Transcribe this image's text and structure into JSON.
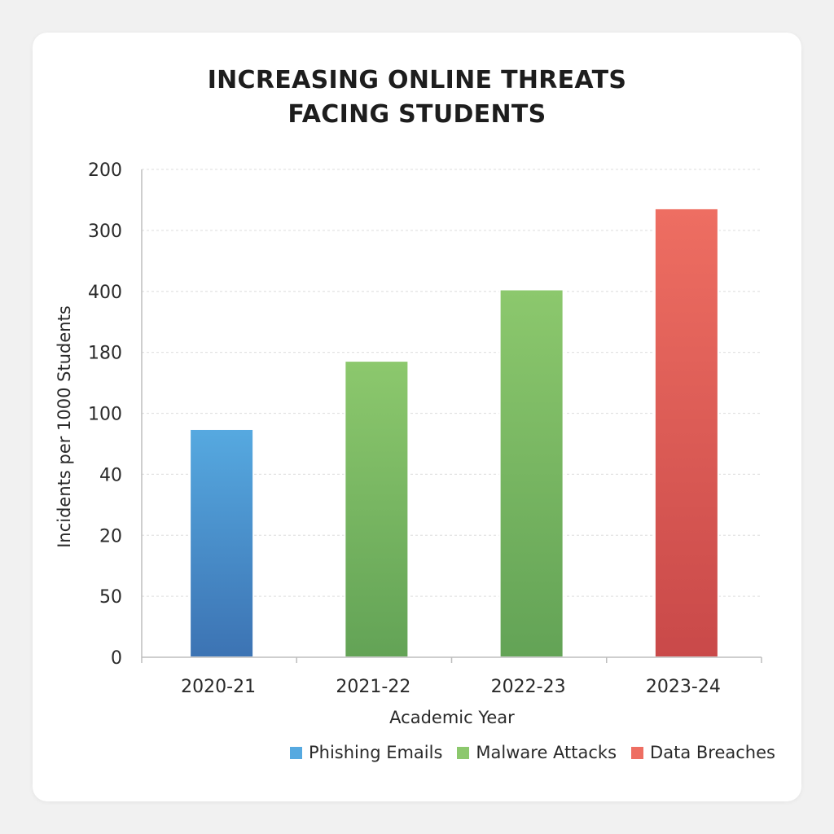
{
  "chart_data": {
    "type": "bar",
    "title_lines": [
      "INCREASING ONLINE THREATS",
      "FACING STUDENTS"
    ],
    "xlabel": "Academic Year",
    "ylabel": "Incidents per 1000 Students",
    "categories": [
      "2020-21",
      "2021-22",
      "2022-23",
      "2023-24"
    ],
    "y_tick_labels": [
      "0",
      "50",
      "20",
      "40",
      "100",
      "180",
      "400",
      "300",
      "200"
    ],
    "y_tick_positions": [
      0,
      1,
      2,
      3,
      4,
      5,
      6,
      7,
      8
    ],
    "ylim": [
      0,
      8
    ],
    "bars": [
      {
        "category": "2020-21",
        "position": 3.74,
        "series": "Phishing Emails"
      },
      {
        "category": "2021-22",
        "position": 4.86,
        "series": "Malware Attacks"
      },
      {
        "category": "2022-23",
        "position": 6.03,
        "series": "Malware Attacks"
      },
      {
        "category": "2023-24",
        "position": 7.36,
        "series": "Data Breaches"
      }
    ],
    "series": [
      {
        "name": "Phishing Emails",
        "color_top": "#56a9e0",
        "color_bottom": "#3c73b3"
      },
      {
        "name": "Malware Attacks",
        "color_top": "#8cc86d",
        "color_bottom": "#63a356"
      },
      {
        "name": "Data Breaches",
        "color_top": "#ee6e62",
        "color_bottom": "#c94949"
      }
    ],
    "grid": true,
    "legend_position": "bottom-right"
  }
}
